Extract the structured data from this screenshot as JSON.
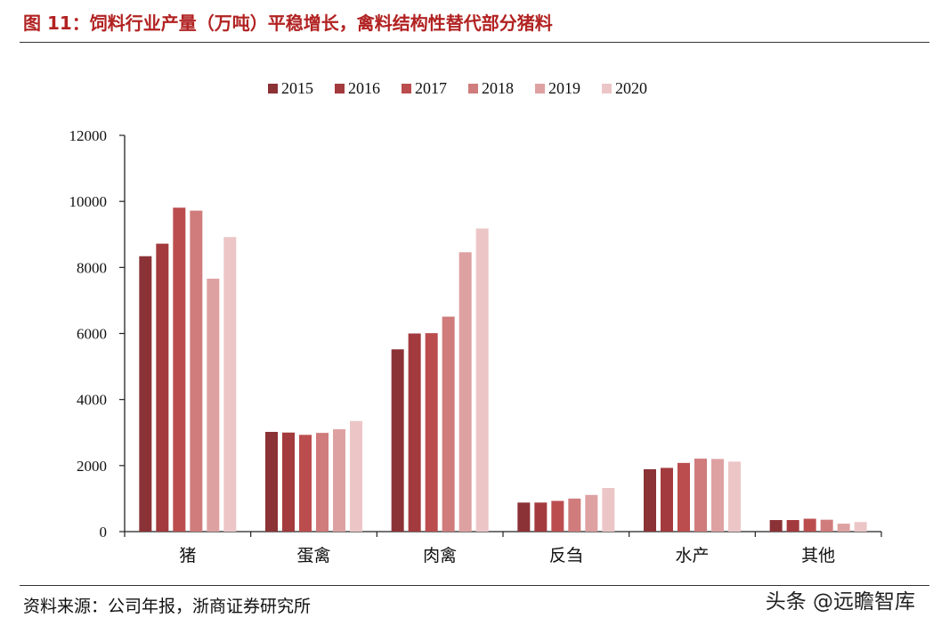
{
  "figure": {
    "title": "图  11：饲料行业产量（万吨）平稳增长，禽料结构性替代部分猪料",
    "source": "资料来源：公司年报，浙商证券研究所",
    "watermark": "头条 @远瞻智库"
  },
  "chart_data": {
    "type": "bar",
    "title": "",
    "xlabel": "",
    "ylabel": "",
    "ylim": [
      0,
      12000
    ],
    "yticks": [
      0,
      2000,
      4000,
      6000,
      8000,
      10000,
      12000
    ],
    "grid": false,
    "legend_position": "top-center",
    "categories": [
      "猪",
      "蛋禽",
      "肉禽",
      "反刍",
      "水产",
      "其他"
    ],
    "series": [
      {
        "name": "2015",
        "color": "#8b3236",
        "values": [
          8340,
          3020,
          5520,
          880,
          1890,
          350
        ]
      },
      {
        "name": "2016",
        "color": "#a33a3d",
        "values": [
          8720,
          3000,
          6000,
          880,
          1930,
          350
        ]
      },
      {
        "name": "2017",
        "color": "#bb4d4f",
        "values": [
          9810,
          2930,
          6010,
          930,
          2080,
          390
        ]
      },
      {
        "name": "2018",
        "color": "#d07c7c",
        "values": [
          9720,
          2990,
          6510,
          1000,
          2210,
          360
        ]
      },
      {
        "name": "2019",
        "color": "#dea1a2",
        "values": [
          7660,
          3100,
          8460,
          1110,
          2200,
          240
        ]
      },
      {
        "name": "2020",
        "color": "#ecc6c7",
        "values": [
          8920,
          3350,
          9180,
          1320,
          2120,
          290
        ]
      }
    ]
  }
}
